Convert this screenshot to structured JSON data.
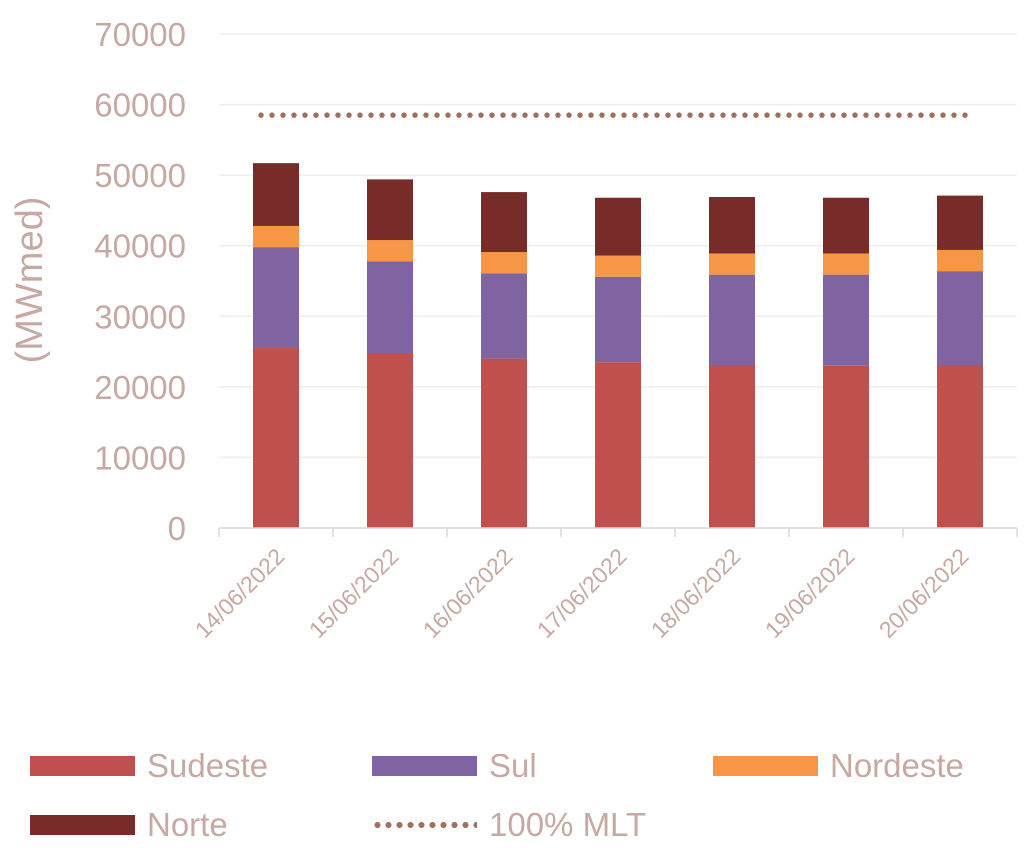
{
  "chart_data": {
    "type": "bar",
    "stacked": true,
    "ylabel": "(MWmed)",
    "xlabel": "",
    "ylim": [
      0,
      70000
    ],
    "yticks": [
      0,
      10000,
      20000,
      30000,
      40000,
      50000,
      60000,
      70000
    ],
    "grid": true,
    "legend_position": "bottom",
    "categories": [
      "14/06/2022",
      "15/06/2022",
      "16/06/2022",
      "17/06/2022",
      "18/06/2022",
      "19/06/2022",
      "20/06/2022"
    ],
    "series": [
      {
        "name": "Sudeste",
        "color": "#c0504d",
        "values": [
          25500,
          24800,
          24000,
          23500,
          23100,
          23000,
          23100
        ]
      },
      {
        "name": "Sul",
        "color": "#8064a2",
        "values": [
          14300,
          13000,
          12100,
          12100,
          12800,
          12900,
          13300
        ]
      },
      {
        "name": "Nordeste",
        "color": "#f79646",
        "values": [
          3000,
          3000,
          3000,
          3000,
          3000,
          3000,
          3000
        ]
      },
      {
        "name": "Norte",
        "color": "#772c2a",
        "values": [
          8900,
          8600,
          8500,
          8200,
          8000,
          7900,
          7700
        ]
      }
    ],
    "reference_line": {
      "name": "100% MLT",
      "color": "#a0705f",
      "style": "dotted",
      "value": 58500
    }
  }
}
